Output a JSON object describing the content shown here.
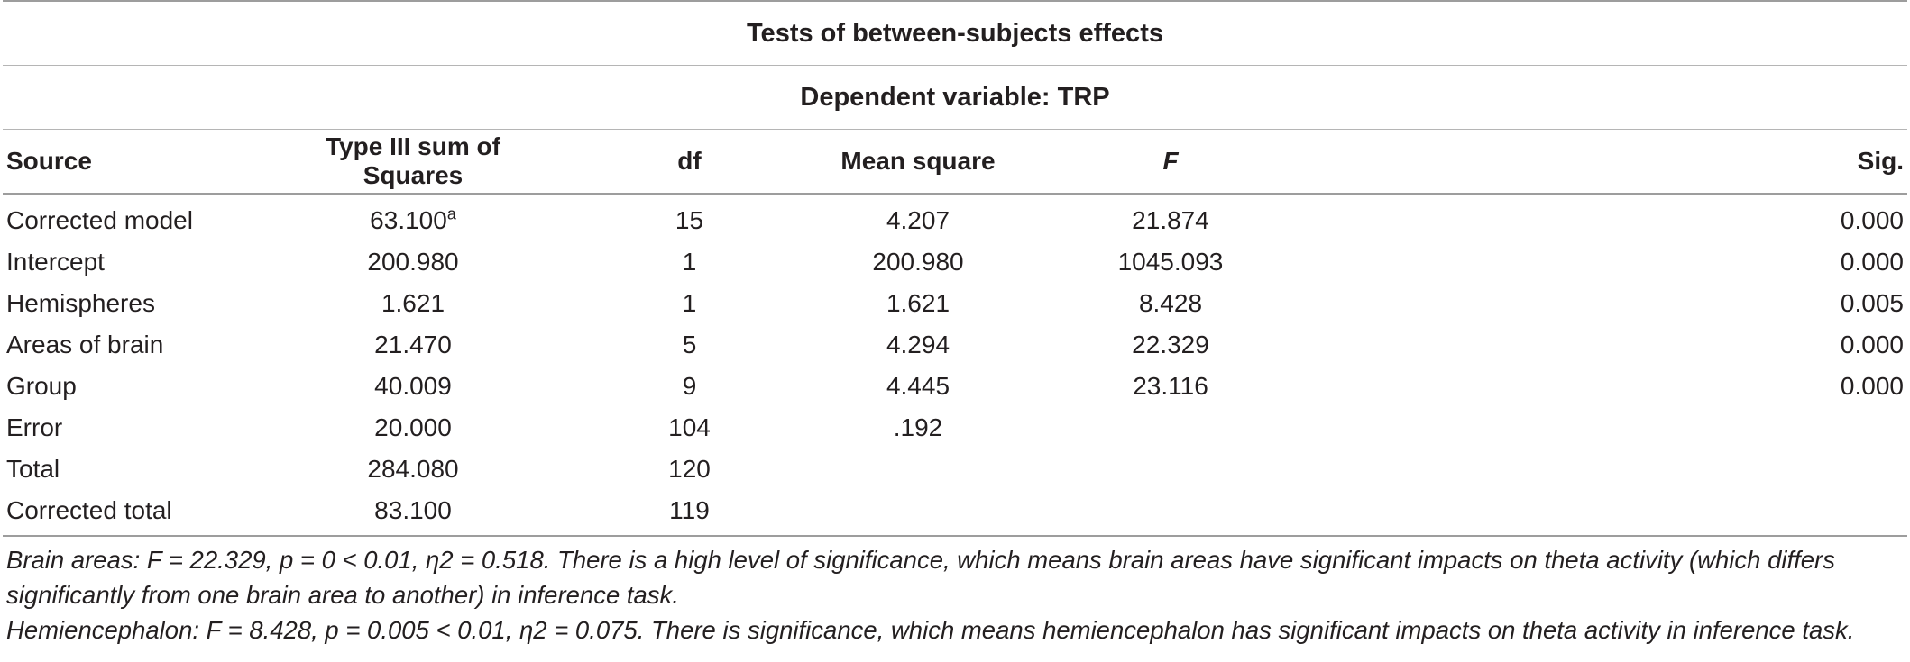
{
  "table": {
    "title": "Tests of between-subjects effects",
    "dependent_variable": "Dependent variable: TRP",
    "headers": [
      "Source",
      "Type III sum of Squares",
      "df",
      "Mean square",
      "F",
      "Sig."
    ],
    "rows": [
      {
        "source": "Corrected model",
        "ss": "63.100",
        "ss_sup": "a",
        "df": "15",
        "ms": "4.207",
        "f": "21.874",
        "sig": "0.000"
      },
      {
        "source": "Intercept",
        "ss": "200.980",
        "ss_sup": "",
        "df": "1",
        "ms": "200.980",
        "f": "1045.093",
        "sig": "0.000"
      },
      {
        "source": "Hemispheres",
        "ss": "1.621",
        "ss_sup": "",
        "df": "1",
        "ms": "1.621",
        "f": "8.428",
        "sig": "0.005"
      },
      {
        "source": "Areas of brain",
        "ss": "21.470",
        "ss_sup": "",
        "df": "5",
        "ms": "4.294",
        "f": "22.329",
        "sig": "0.000"
      },
      {
        "source": "Group",
        "ss": "40.009",
        "ss_sup": "",
        "df": "9",
        "ms": "4.445",
        "f": "23.116",
        "sig": "0.000"
      },
      {
        "source": "Error",
        "ss": "20.000",
        "ss_sup": "",
        "df": "104",
        "ms": ".192",
        "f": "",
        "sig": ""
      },
      {
        "source": "Total",
        "ss": "284.080",
        "ss_sup": "",
        "df": "120",
        "ms": "",
        "f": "",
        "sig": ""
      },
      {
        "source": "Corrected total",
        "ss": "83.100",
        "ss_sup": "",
        "df": "119",
        "ms": "",
        "f": "",
        "sig": ""
      }
    ],
    "notes": [
      "Brain areas: F = 22.329, p = 0 < 0.01, η2 = 0.518. There is a high level of significance, which means brain areas have significant impacts on theta activity (which differs significantly from one brain area to another) in inference task.",
      "Hemiencephalon: F = 8.428, p = 0.005 < 0.01, η2 = 0.075. There is significance, which means hemiencephalon has significant impacts on theta activity in inference task."
    ]
  }
}
